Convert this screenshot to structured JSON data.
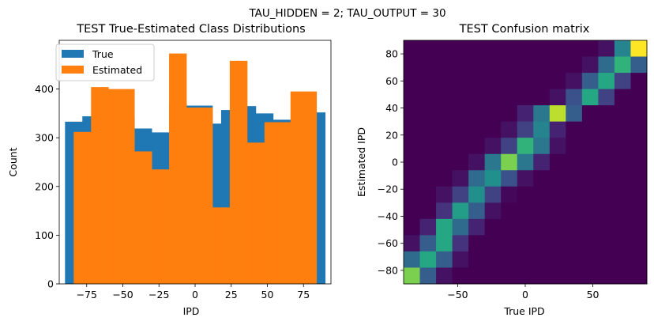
{
  "suptitle": "TAU_HIDDEN = 2; TAU_OUTPUT = 30",
  "chart_data": [
    {
      "type": "bar",
      "subtype": "histogram",
      "title": "TEST True-Estimated Class Distributions",
      "xlabel": "IPD",
      "ylabel": "Count",
      "xlim": [
        -94,
        94
      ],
      "ylim": [
        0,
        500
      ],
      "xticks": [
        -75,
        -50,
        -25,
        0,
        25,
        50,
        75
      ],
      "xtick_labels": [
        "−75",
        "−50",
        "−25",
        "0",
        "25",
        "50",
        "75"
      ],
      "yticks": [
        0,
        100,
        200,
        300,
        400
      ],
      "ytick_labels": [
        "0",
        "100",
        "200",
        "300",
        "400"
      ],
      "legend": {
        "placement": "upper-left",
        "entries": [
          "True",
          "Estimated"
        ]
      },
      "series": [
        {
          "name": "True",
          "color": "#1f77b4",
          "bin_edges": [
            -90,
            -84,
            -78,
            -72,
            -66,
            -60,
            -54,
            -48,
            -42,
            -36,
            -30,
            -24,
            -18,
            -12,
            -6,
            0,
            6,
            12,
            18,
            24,
            30,
            36,
            42,
            48,
            54,
            60,
            66,
            72,
            78,
            84,
            90
          ],
          "values": [
            333,
            333,
            344,
            344,
            344,
            344,
            344,
            344,
            319,
            319,
            311,
            311,
            370,
            370,
            366,
            366,
            366,
            329,
            357,
            357,
            365,
            365,
            350,
            350,
            337,
            337,
            327,
            332,
            332,
            352
          ]
        },
        {
          "name": "Estimated",
          "color": "#ff7f0e",
          "bin_edges": [
            -84,
            -78,
            -72,
            -66,
            -60,
            -54,
            -48,
            -42,
            -36,
            -30,
            -24,
            -18,
            -12,
            -6,
            0,
            6,
            12,
            18,
            24,
            30,
            36,
            42,
            48,
            54,
            60,
            66,
            72,
            78,
            84
          ],
          "values": [
            312,
            312,
            404,
            404,
            400,
            400,
            400,
            272,
            272,
            235,
            235,
            473,
            473,
            362,
            362,
            362,
            157,
            157,
            458,
            458,
            290,
            290,
            332,
            332,
            332,
            395,
            395,
            395
          ]
        }
      ]
    },
    {
      "type": "heatmap",
      "title": "TEST Confusion matrix",
      "xlabel": "True IPD",
      "ylabel": "Estimated IPD",
      "xlim": [
        -90,
        90
      ],
      "ylim": [
        -90,
        90
      ],
      "xticks": [
        -50,
        0,
        50
      ],
      "xtick_labels": [
        "−50",
        "0",
        "50"
      ],
      "yticks": [
        -80,
        -60,
        -40,
        -20,
        0,
        20,
        40,
        60,
        80
      ],
      "ytick_labels": [
        "−80",
        "−60",
        "−40",
        "−20",
        "0",
        "20",
        "40",
        "60",
        "80"
      ],
      "colormap": "viridis",
      "value_range": [
        0,
        1
      ],
      "grid_rows_top_to_bottom": [
        [
          0,
          0,
          0,
          0,
          0,
          0,
          0,
          0,
          0,
          0,
          0,
          0,
          0.05,
          0.45,
          1.0
        ],
        [
          0,
          0,
          0,
          0,
          0,
          0,
          0,
          0,
          0,
          0,
          0,
          0.05,
          0.35,
          0.65,
          0.3
        ],
        [
          0,
          0,
          0,
          0,
          0,
          0,
          0,
          0,
          0,
          0,
          0.05,
          0.3,
          0.6,
          0.2,
          0
        ],
        [
          0,
          0,
          0,
          0,
          0,
          0,
          0,
          0,
          0,
          0.05,
          0.25,
          0.6,
          0.2,
          0,
          0
        ],
        [
          0,
          0,
          0,
          0,
          0,
          0,
          0,
          0.1,
          0.4,
          0.9,
          0.3,
          0,
          0,
          0,
          0
        ],
        [
          0,
          0,
          0,
          0,
          0,
          0,
          0.05,
          0.2,
          0.45,
          0.1,
          0,
          0,
          0,
          0,
          0
        ],
        [
          0,
          0,
          0,
          0,
          0,
          0.05,
          0.2,
          0.65,
          0.4,
          0.05,
          0,
          0,
          0,
          0,
          0
        ],
        [
          0,
          0,
          0,
          0,
          0.05,
          0.4,
          0.8,
          0.4,
          0.1,
          0,
          0,
          0,
          0,
          0,
          0
        ],
        [
          0,
          0,
          0,
          0.05,
          0.35,
          0.5,
          0.25,
          0.05,
          0,
          0,
          0,
          0,
          0,
          0,
          0
        ],
        [
          0,
          0,
          0.05,
          0.2,
          0.5,
          0.2,
          0.02,
          0,
          0,
          0,
          0,
          0,
          0,
          0,
          0
        ],
        [
          0,
          0,
          0.15,
          0.55,
          0.3,
          0.05,
          0,
          0,
          0,
          0,
          0,
          0,
          0,
          0,
          0
        ],
        [
          0,
          0.1,
          0.6,
          0.35,
          0.1,
          0,
          0,
          0,
          0,
          0,
          0,
          0,
          0,
          0,
          0
        ],
        [
          0.05,
          0.3,
          0.6,
          0.15,
          0,
          0,
          0,
          0,
          0,
          0,
          0,
          0,
          0,
          0,
          0
        ],
        [
          0.35,
          0.6,
          0.3,
          0.05,
          0,
          0,
          0,
          0,
          0,
          0,
          0,
          0,
          0,
          0,
          0
        ],
        [
          0.8,
          0.3,
          0.05,
          0,
          0,
          0,
          0,
          0,
          0,
          0,
          0,
          0,
          0,
          0,
          0
        ]
      ]
    }
  ]
}
